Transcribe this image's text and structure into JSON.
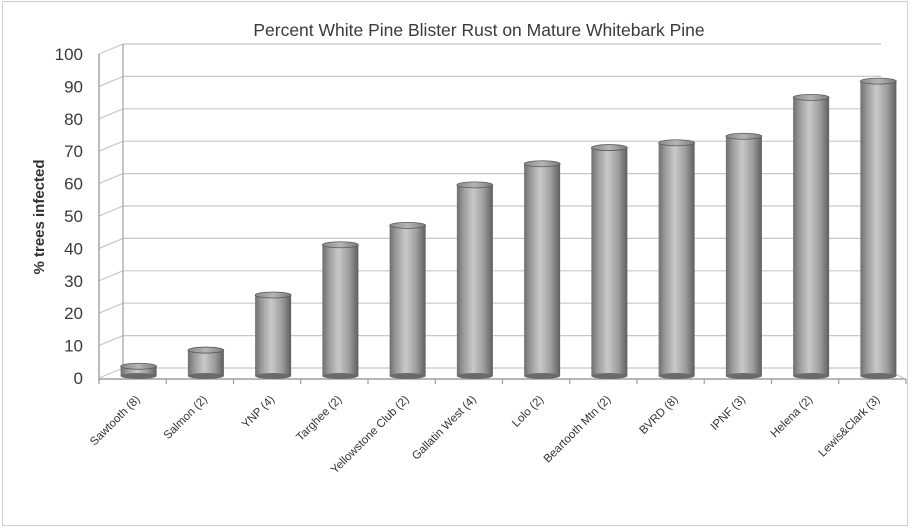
{
  "chart_data": {
    "type": "bar",
    "title": "Percent White Pine Blister Rust on Mature Whitebark Pine",
    "xlabel": "",
    "ylabel": "% trees infected",
    "ylim": [
      0,
      100
    ],
    "yticks": [
      0,
      10,
      20,
      30,
      40,
      50,
      60,
      70,
      80,
      90,
      100
    ],
    "categories": [
      "Sawtooth (8)",
      "Salmon (2)",
      "YNP (4)",
      "Targhee (2)",
      "Yellowstone Club (2)",
      "Gallatin West (4)",
      "Lolo (2)",
      "Beartooth Mtn (2)",
      "BVRD (8)",
      "IPNF (3)",
      "Helena (2)",
      "Lewis&Clark (3)"
    ],
    "values": [
      3,
      8,
      25,
      40.5,
      46.5,
      59,
      65.5,
      70.5,
      72,
      74,
      86,
      91
    ],
    "grid": true,
    "legend": "none",
    "colors": {
      "bar": "#9a9a9a",
      "grid": "#c8c8c8",
      "axis": "#9f9f9f"
    }
  }
}
